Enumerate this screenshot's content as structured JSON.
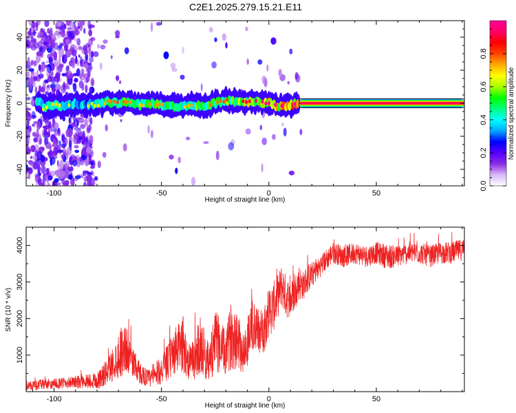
{
  "title": "C2E1.2025.279.15.21.E11",
  "colors": {
    "snr_line": "#ee2222",
    "background": "#ffffff",
    "axis": "#000000"
  },
  "chart_data": [
    {
      "type": "heatmap",
      "id": "spectrogram",
      "xlabel": "Height of straight line (km)",
      "ylabel": "Frequency (Hz)",
      "xlim": [
        -113,
        91
      ],
      "ylim": [
        -50,
        50
      ],
      "xticks": [
        -100,
        -50,
        0,
        50
      ],
      "yticks": [
        -40,
        -20,
        0,
        20,
        40
      ],
      "xtick_labels": [
        "-100",
        "-50",
        "0",
        "50"
      ],
      "ytick_labels": [
        "-40",
        "-20",
        "0",
        "20",
        "40"
      ],
      "colorbar": {
        "label": "Normalized spectral amplitude",
        "range": [
          0,
          1
        ],
        "ticks": [
          0.0,
          0.2,
          0.4,
          0.6,
          0.8
        ],
        "tick_labels": [
          "0.0",
          "0.2",
          "0.4",
          "0.6",
          "0.8"
        ],
        "colormap": [
          "#ffffff",
          "#d8b8f8",
          "#8a2be2",
          "#5500ff",
          "#0000ff",
          "#00aaff",
          "#00ffff",
          "#00ff80",
          "#00ff00",
          "#aaff00",
          "#ffff00",
          "#ffaa00",
          "#ff4400",
          "#ff0000",
          "#ff0066",
          "#ff0099"
        ]
      },
      "ridge": [
        {
          "x": -105,
          "y": -3,
          "a": 0.5
        },
        {
          "x": -100,
          "y": -1,
          "a": 0.55
        },
        {
          "x": -95,
          "y": -2,
          "a": 0.5
        },
        {
          "x": -90,
          "y": 0,
          "a": 0.45
        },
        {
          "x": -85,
          "y": -1,
          "a": 0.45
        },
        {
          "x": -80,
          "y": -1,
          "a": 0.5
        },
        {
          "x": -75,
          "y": 1,
          "a": 0.6
        },
        {
          "x": -70,
          "y": 0,
          "a": 0.65
        },
        {
          "x": -65,
          "y": 1,
          "a": 0.6
        },
        {
          "x": -60,
          "y": -1,
          "a": 0.55
        },
        {
          "x": -55,
          "y": 0,
          "a": 0.6
        },
        {
          "x": -50,
          "y": -1,
          "a": 0.6
        },
        {
          "x": -45,
          "y": -2,
          "a": 0.55
        },
        {
          "x": -40,
          "y": -2,
          "a": 0.55
        },
        {
          "x": -35,
          "y": -1,
          "a": 0.6
        },
        {
          "x": -30,
          "y": -2,
          "a": 0.65
        },
        {
          "x": -25,
          "y": 0,
          "a": 0.6
        },
        {
          "x": -20,
          "y": 2,
          "a": 0.65
        },
        {
          "x": -15,
          "y": 1,
          "a": 0.7
        },
        {
          "x": -10,
          "y": 1,
          "a": 0.75
        },
        {
          "x": -5,
          "y": 1,
          "a": 0.8
        },
        {
          "x": 0,
          "y": 0,
          "a": 0.85
        },
        {
          "x": 5,
          "y": -2,
          "a": 0.85
        },
        {
          "x": 10,
          "y": -1,
          "a": 0.9
        },
        {
          "x": 15,
          "y": 0,
          "a": 0.92
        },
        {
          "x": 30,
          "y": 0,
          "a": 0.95
        },
        {
          "x": 60,
          "y": 0,
          "a": 0.95
        },
        {
          "x": 90,
          "y": 0,
          "a": 0.95
        }
      ]
    },
    {
      "type": "line",
      "id": "snr",
      "xlabel": "Height of straight line (km)",
      "ylabel": "SNR (10 * v/v)",
      "xlim": [
        -113,
        91
      ],
      "ylim": [
        0,
        4500
      ],
      "xticks": [
        -100,
        -50,
        0,
        50
      ],
      "yticks": [
        1000,
        2000,
        3000,
        4000
      ],
      "xtick_labels": [
        "-100",
        "-50",
        "0",
        "50"
      ],
      "ytick_labels": [
        "1000",
        "2000",
        "3000",
        "4000"
      ],
      "series": [
        {
          "name": "SNR",
          "x": [
            -113,
            -105,
            -100,
            -95,
            -90,
            -85,
            -80,
            -76,
            -72,
            -69,
            -67,
            -65,
            -62,
            -60,
            -57,
            -55,
            -52,
            -50,
            -47,
            -45,
            -42,
            -40,
            -38,
            -36,
            -34,
            -32,
            -30,
            -28,
            -26,
            -24,
            -22,
            -20,
            -18,
            -16,
            -14,
            -12,
            -10,
            -8,
            -6,
            -4,
            -2,
            0,
            2,
            4,
            6,
            8,
            10,
            12,
            14,
            16,
            18,
            20,
            22,
            25,
            28,
            30,
            35,
            40,
            45,
            50,
            55,
            60,
            65,
            70,
            75,
            80,
            85,
            91
          ],
          "mean": [
            150,
            200,
            200,
            250,
            250,
            300,
            300,
            500,
            800,
            1100,
            1200,
            1000,
            700,
            500,
            400,
            350,
            500,
            600,
            800,
            1000,
            1200,
            1300,
            900,
            800,
            1000,
            1300,
            1000,
            800,
            1200,
            1400,
            1200,
            1000,
            1500,
            1600,
            1400,
            1000,
            1400,
            1800,
            1700,
            1600,
            1800,
            2200,
            2300,
            2600,
            2900,
            2600,
            2500,
            2700,
            3000,
            2900,
            3100,
            3200,
            3300,
            3500,
            3700,
            3800,
            3700,
            3800,
            3700,
            3800,
            3700,
            3700,
            3800,
            3800,
            3700,
            3800,
            3800,
            3900
          ],
          "spread": [
            120,
            150,
            150,
            150,
            180,
            200,
            250,
            350,
            500,
            700,
            700,
            500,
            400,
            300,
            250,
            250,
            350,
            400,
            500,
            600,
            700,
            800,
            600,
            500,
            700,
            800,
            700,
            500,
            800,
            900,
            700,
            600,
            900,
            1000,
            800,
            600,
            700,
            800,
            700,
            600,
            700,
            700,
            700,
            600,
            600,
            600,
            500,
            500,
            500,
            400,
            400,
            350,
            300,
            300,
            300,
            300,
            300,
            300,
            300,
            300,
            350,
            300,
            300,
            300,
            300,
            300,
            300,
            300
          ]
        }
      ]
    }
  ]
}
